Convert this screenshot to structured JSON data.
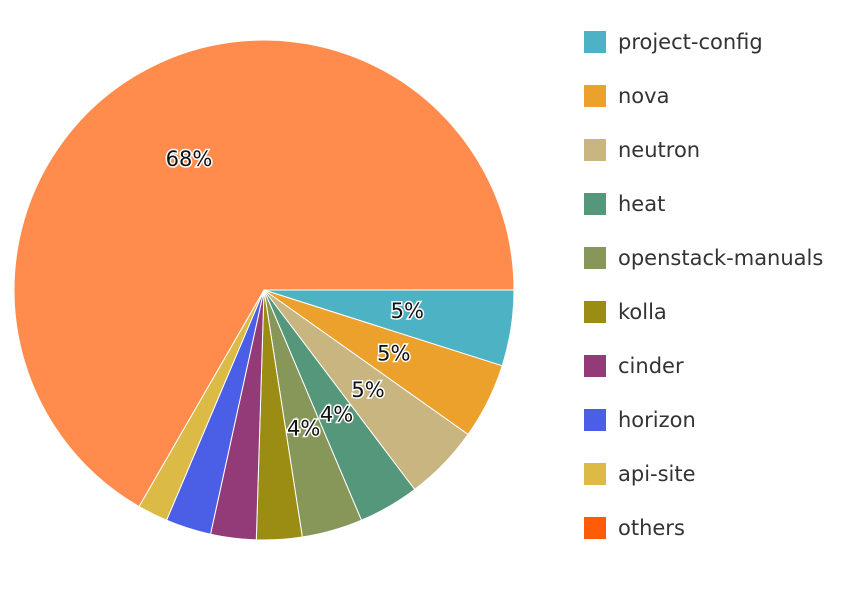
{
  "chart_data": {
    "type": "pie",
    "title": "",
    "legend_position": "right",
    "slices": [
      {
        "name": "project-config",
        "value": 5,
        "label": "5%",
        "color": "#4db3c4"
      },
      {
        "name": "nova",
        "value": 5,
        "label": "5%",
        "color": "#eba12b"
      },
      {
        "name": "neutron",
        "value": 5,
        "label": "5%",
        "color": "#c8b57f"
      },
      {
        "name": "heat",
        "value": 4,
        "label": "4%",
        "color": "#55977a"
      },
      {
        "name": "openstack-manuals",
        "value": 4,
        "label": "4%",
        "color": "#87975a"
      },
      {
        "name": "kolla",
        "value": 3,
        "label": "",
        "color": "#9b8c14"
      },
      {
        "name": "cinder",
        "value": 3,
        "label": "",
        "color": "#933b78"
      },
      {
        "name": "horizon",
        "value": 3,
        "label": "",
        "color": "#4a5fe6"
      },
      {
        "name": "api-site",
        "value": 2,
        "label": "",
        "color": "#dbba45"
      },
      {
        "name": "others",
        "value": 68,
        "label": "68%",
        "color": "#ff8c4d",
        "legend_color": "#ff5c0a"
      }
    ]
  }
}
